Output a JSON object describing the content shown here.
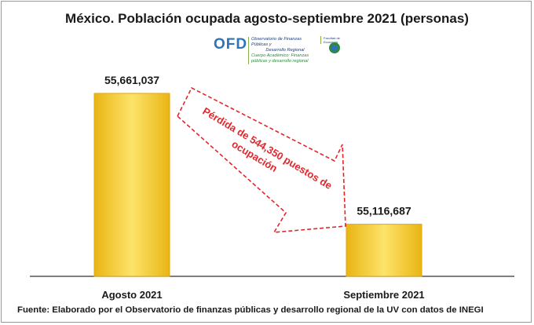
{
  "chart_data": {
    "type": "bar",
    "title": "México. Población ocupada agosto-septiembre 2021 (personas)",
    "categories": [
      "Agosto 2021",
      "Septiembre 2021"
    ],
    "values": [
      55661037,
      55116687
    ],
    "value_labels": [
      "55,661,037",
      "55,116,687"
    ],
    "ylim": [
      54900000,
      55700000
    ],
    "bar_color": "#f7c928",
    "bar_edge_color": "#e3a50d",
    "annotation": {
      "text_line1": "Pérdida de 544,350 puestos de",
      "text_line2": "ocupación",
      "color": "#e3262b"
    },
    "grid": false,
    "legend": "none"
  },
  "logo": {
    "acronym": "OFD",
    "line1": "Observatorio de Finanzas Públicas y",
    "line2": "Desarrollo Regional",
    "line3": "Cuerpo Académico: Finanzas públicas y desarrollo regional",
    "right_text": "Facultad de Economía"
  },
  "footer": "Fuente: Elaborado por el Observatorio de finanzas públicas y desarrollo regional de la UV con datos de INEGI"
}
